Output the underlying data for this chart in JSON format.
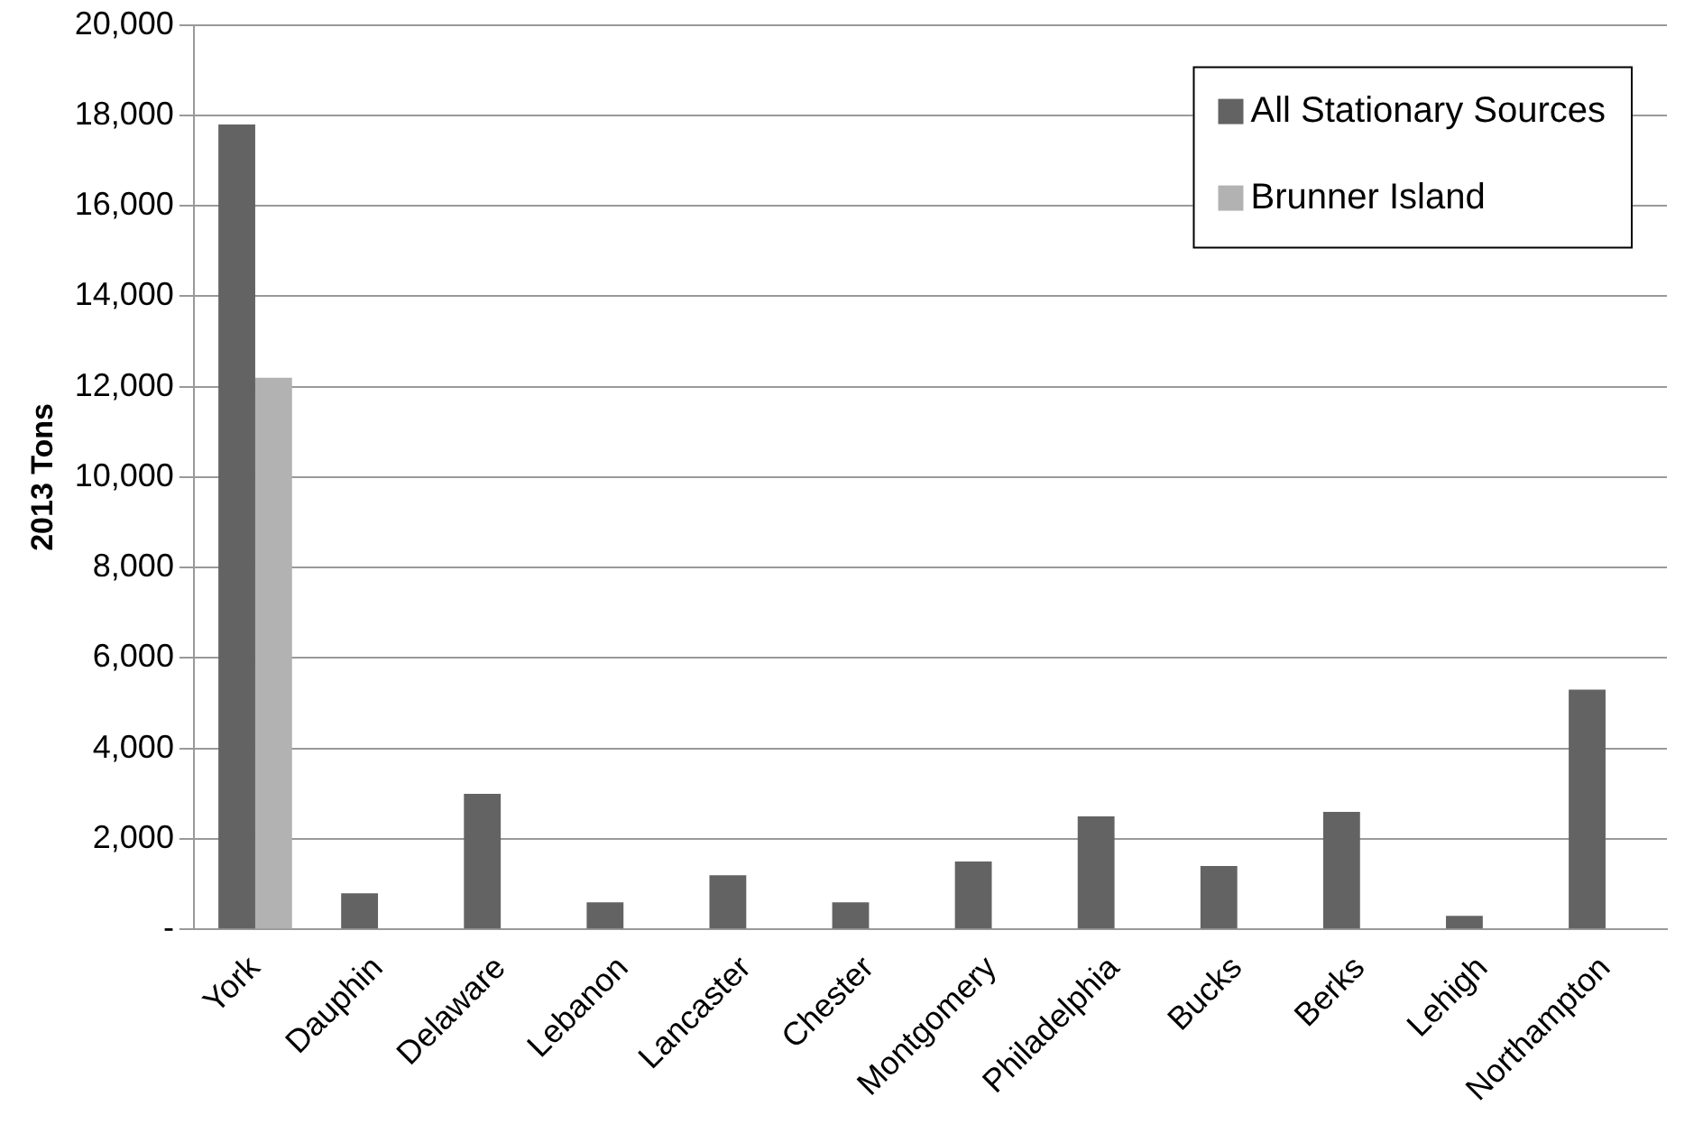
{
  "chart_data": {
    "type": "bar",
    "ylabel": "2013 Tons",
    "categories": [
      "York",
      "Dauphin",
      "Delaware",
      "Lebanon",
      "Lancaster",
      "Chester",
      "Montgomery",
      "Philadelphia",
      "Bucks",
      "Berks",
      "Lehigh",
      "Northampton"
    ],
    "series": [
      {
        "name": "All Stationary Sources",
        "color": "#636363",
        "values": [
          17800,
          800,
          3000,
          600,
          1200,
          600,
          1500,
          2500,
          1400,
          2600,
          300,
          5300
        ]
      },
      {
        "name": "Brunner Island",
        "color": "#b2b2b2",
        "values": [
          12200,
          null,
          null,
          null,
          null,
          null,
          null,
          null,
          null,
          null,
          null,
          null
        ]
      }
    ],
    "ylim": [
      0,
      20000
    ],
    "yticks": [
      {
        "value": 0,
        "label": "-"
      },
      {
        "value": 2000,
        "label": "2,000"
      },
      {
        "value": 4000,
        "label": "4,000"
      },
      {
        "value": 6000,
        "label": "6,000"
      },
      {
        "value": 8000,
        "label": "8,000"
      },
      {
        "value": 10000,
        "label": "10,000"
      },
      {
        "value": 12000,
        "label": "12,000"
      },
      {
        "value": 14000,
        "label": "14,000"
      },
      {
        "value": 16000,
        "label": "16,000"
      },
      {
        "value": 18000,
        "label": "18,000"
      },
      {
        "value": 20000,
        "label": "20,000"
      }
    ],
    "grid": "y",
    "legend": "top right"
  }
}
